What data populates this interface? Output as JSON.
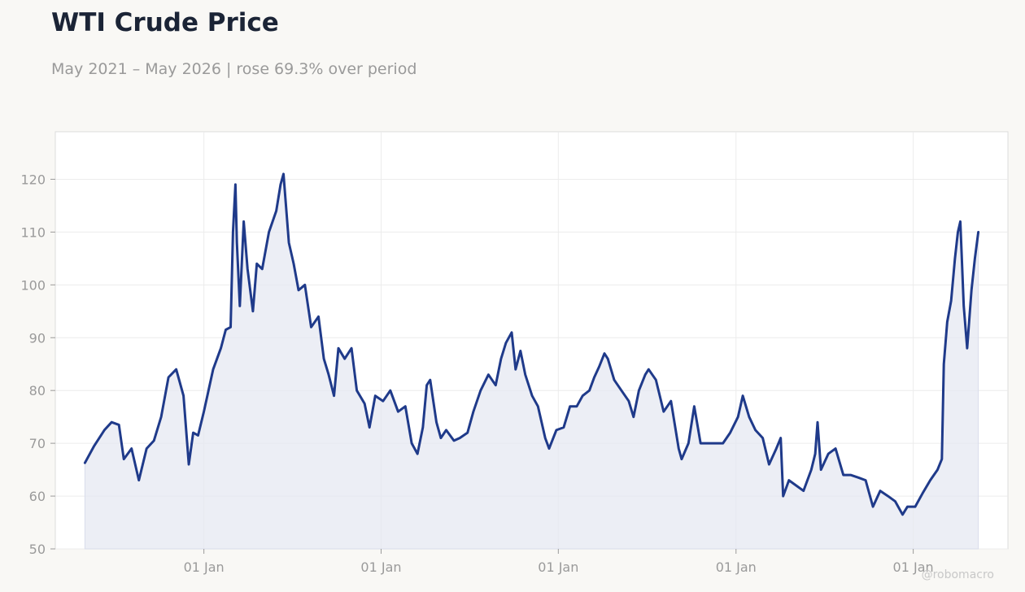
{
  "header": {
    "title": "WTI Crude Price",
    "subtitle": "May 2021 – May 2026 | rose 69.3% over period"
  },
  "watermark": "@robomacro",
  "colors": {
    "line": "#1f3a8a",
    "area": "#e6e8f2",
    "grid": "#ececec",
    "frame": "#dcdcdc",
    "plot_bg": "#ffffff",
    "page_bg": "#f9f8f5"
  },
  "chart_data": {
    "type": "area",
    "title": "WTI Crude Price",
    "subtitle": "May 2021 – May 2026 | rose 69.3% over period",
    "xlabel": "",
    "ylabel": "",
    "xlim": [
      "2021-03-01",
      "2026-07-15"
    ],
    "ylim": [
      50,
      129
    ],
    "grid": true,
    "y_ticks": [
      50,
      60,
      70,
      80,
      90,
      100,
      110,
      120
    ],
    "x_ticks": [
      {
        "date": "2022-01-01",
        "label": "01 Jan"
      },
      {
        "date": "2023-01-01",
        "label": "01 Jan"
      },
      {
        "date": "2024-01-01",
        "label": "01 Jan"
      },
      {
        "date": "2025-01-01",
        "label": "01 Jan"
      },
      {
        "date": "2026-01-01",
        "label": "01 Jan"
      }
    ],
    "series": [
      {
        "name": "",
        "x": [
          "2021-05-01",
          "2021-05-20",
          "2021-06-10",
          "2021-06-25",
          "2021-07-10",
          "2021-07-20",
          "2021-08-05",
          "2021-08-20",
          "2021-09-05",
          "2021-09-20",
          "2021-10-05",
          "2021-10-20",
          "2021-11-05",
          "2021-11-20",
          "2021-12-01",
          "2021-12-10",
          "2021-12-20",
          "2022-01-01",
          "2022-01-20",
          "2022-02-05",
          "2022-02-15",
          "2022-02-25",
          "2022-03-02",
          "2022-03-07",
          "2022-03-10",
          "2022-03-16",
          "2022-03-24",
          "2022-04-01",
          "2022-04-12",
          "2022-04-20",
          "2022-05-01",
          "2022-05-15",
          "2022-05-30",
          "2022-06-08",
          "2022-06-14",
          "2022-06-25",
          "2022-07-05",
          "2022-07-15",
          "2022-07-28",
          "2022-08-10",
          "2022-08-25",
          "2022-09-05",
          "2022-09-15",
          "2022-09-26",
          "2022-10-05",
          "2022-10-18",
          "2022-11-01",
          "2022-11-12",
          "2022-11-28",
          "2022-12-08",
          "2022-12-20",
          "2023-01-05",
          "2023-01-20",
          "2023-02-05",
          "2023-02-20",
          "2023-03-05",
          "2023-03-17",
          "2023-03-28",
          "2023-04-05",
          "2023-04-12",
          "2023-04-25",
          "2023-05-04",
          "2023-05-15",
          "2023-05-31",
          "2023-06-12",
          "2023-06-28",
          "2023-07-10",
          "2023-07-25",
          "2023-08-10",
          "2023-08-25",
          "2023-09-05",
          "2023-09-15",
          "2023-09-27",
          "2023-10-05",
          "2023-10-15",
          "2023-10-25",
          "2023-11-08",
          "2023-11-20",
          "2023-12-05",
          "2023-12-13",
          "2023-12-28",
          "2024-01-12",
          "2024-01-25",
          "2024-02-08",
          "2024-02-20",
          "2024-03-05",
          "2024-03-15",
          "2024-03-25",
          "2024-04-05",
          "2024-04-12",
          "2024-04-25",
          "2024-05-10",
          "2024-05-25",
          "2024-06-04",
          "2024-06-15",
          "2024-06-28",
          "2024-07-05",
          "2024-07-20",
          "2024-08-05",
          "2024-08-20",
          "2024-09-05",
          "2024-09-11",
          "2024-09-25",
          "2024-10-07",
          "2024-10-20",
          "2024-11-05",
          "2024-11-20",
          "2024-12-05",
          "2024-12-20",
          "2025-01-05",
          "2025-01-15",
          "2025-01-28",
          "2025-02-10",
          "2025-02-25",
          "2025-03-10",
          "2025-03-25",
          "2025-04-03",
          "2025-04-08",
          "2025-04-20",
          "2025-05-05",
          "2025-05-20",
          "2025-06-05",
          "2025-06-13",
          "2025-06-18",
          "2025-06-25",
          "2025-07-10",
          "2025-07-25",
          "2025-08-10",
          "2025-08-25",
          "2025-09-10",
          "2025-09-25",
          "2025-10-10",
          "2025-10-25",
          "2025-11-10",
          "2025-11-25",
          "2025-12-10",
          "2025-12-20",
          "2026-01-05",
          "2026-01-20",
          "2026-02-05",
          "2026-02-20",
          "2026-03-01",
          "2026-03-05",
          "2026-03-12",
          "2026-03-20",
          "2026-03-28",
          "2026-04-03",
          "2026-04-08",
          "2026-04-15",
          "2026-04-22",
          "2026-05-01",
          "2026-05-08",
          "2026-05-15"
        ],
        "values": [
          66.3,
          69.5,
          72.5,
          74.0,
          73.5,
          67.0,
          69.0,
          63.0,
          69.0,
          70.5,
          75.0,
          82.5,
          84.0,
          79.0,
          66.0,
          72.0,
          71.5,
          76.0,
          84.0,
          88.0,
          91.5,
          92.0,
          110.0,
          119.0,
          108.0,
          96.0,
          112.0,
          103.0,
          95.0,
          104.0,
          103.0,
          110.0,
          114.0,
          119.0,
          121.0,
          108.0,
          104.0,
          99.0,
          100.0,
          92.0,
          94.0,
          86.0,
          83.0,
          79.0,
          88.0,
          86.0,
          88.0,
          80.0,
          77.5,
          73.0,
          79.0,
          78.0,
          80.0,
          76.0,
          77.0,
          70.0,
          68.0,
          73.0,
          81.0,
          82.0,
          74.0,
          71.0,
          72.5,
          70.5,
          71.0,
          72.0,
          76.0,
          80.0,
          83.0,
          81.0,
          86.0,
          89.0,
          91.0,
          84.0,
          87.5,
          83.0,
          79.0,
          77.0,
          71.0,
          69.0,
          72.5,
          73.0,
          77.0,
          77.0,
          79.0,
          80.0,
          82.5,
          84.5,
          87.0,
          86.0,
          82.0,
          80.0,
          78.0,
          75.0,
          80.0,
          83.0,
          84.0,
          82.0,
          76.0,
          78.0,
          69.0,
          67.0,
          70.0,
          77.0,
          70.0,
          70.0,
          70.0,
          70.0,
          72.0,
          75.0,
          79.0,
          75.0,
          72.5,
          71.0,
          66.0,
          69.0,
          71.0,
          60.0,
          63.0,
          62.0,
          61.0,
          65.0,
          68.0,
          74.0,
          65.0,
          68.0,
          69.0,
          64.0,
          64.0,
          63.5,
          63.0,
          58.0,
          61.0,
          60.0,
          59.0,
          56.5,
          58.0,
          58.0,
          60.5,
          63.0,
          65.0,
          67.0,
          85.0,
          93.0,
          97.0,
          105.0,
          110.0,
          112.0,
          96.0,
          88.0,
          99.0,
          105.0,
          110.0
        ]
      }
    ]
  }
}
